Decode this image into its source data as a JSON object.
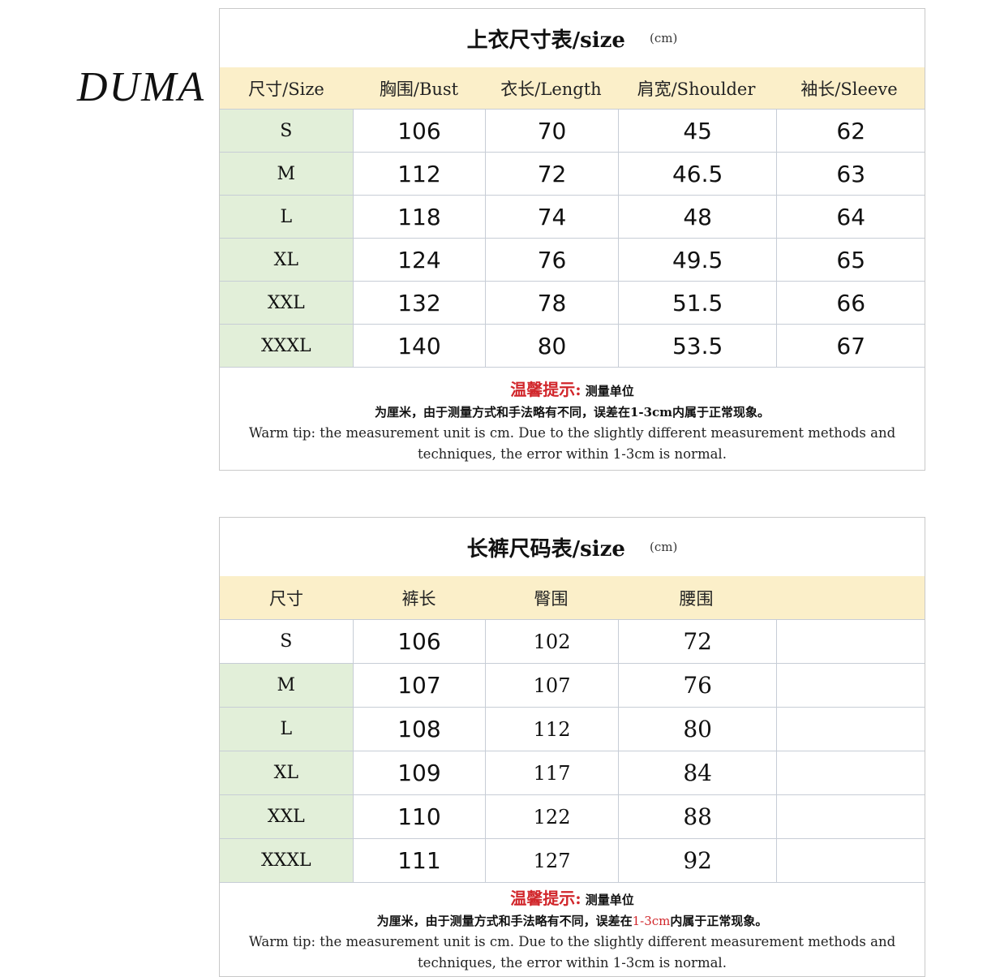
{
  "logo": "DUMA",
  "top": {
    "title": "上衣尺寸表/size",
    "unit": "(cm)",
    "headers": [
      "尺寸/Size",
      "胸围/Bust",
      "衣长/Length",
      "肩宽/Shoulder",
      "袖长/Sleeve"
    ],
    "rows": [
      [
        "S",
        "106",
        "70",
        "45",
        "62"
      ],
      [
        "M",
        "112",
        "72",
        "46.5",
        "63"
      ],
      [
        "L",
        "118",
        "74",
        "48",
        "64"
      ],
      [
        "XL",
        "124",
        "76",
        "49.5",
        "65"
      ],
      [
        "XXL",
        "132",
        "78",
        "51.5",
        "66"
      ],
      [
        "XXXL",
        "140",
        "80",
        "53.5",
        "67"
      ]
    ],
    "tip_label": "温馨提示:",
    "tip_cn1": "测量单位",
    "tip_cn2": "为厘米，由于测量方式和手法略有不同，误差在1-3cm内属于正常现象。",
    "tip_en": "Warm tip: the measurement unit is cm. Due to the slightly different measurement methods and techniques, the error within 1-3cm is normal."
  },
  "pants": {
    "title": "长裤尺码表/size",
    "unit": "(cm)",
    "headers": [
      "尺寸",
      "裤长",
      "臀围",
      "腰围",
      ""
    ],
    "rows": [
      [
        "S",
        "106",
        "102",
        "72",
        ""
      ],
      [
        "M",
        "107",
        "107",
        "76",
        ""
      ],
      [
        "L",
        "108",
        "112",
        "80",
        ""
      ],
      [
        "XL",
        "109",
        "117",
        "84",
        ""
      ],
      [
        "XXL",
        "110",
        "122",
        "88",
        ""
      ],
      [
        "XXXL",
        "111",
        "127",
        "92",
        ""
      ]
    ],
    "tip_label": "温馨提示:",
    "tip_cn1": "测量单位",
    "tip_cn2a": "为厘米，由于测量方式和手法略有不同，误差在",
    "tip_cn2b": "1-3cm",
    "tip_cn2c": "内属于正常现象。",
    "tip_en": "Warm tip: the measurement unit is cm. Due to the slightly different measurement methods and techniques, the error within 1-3cm is normal."
  },
  "colors": {
    "header_bg": "#fbefc9",
    "size_col_bg": "#e2efd9",
    "tip_red": "#d1262b"
  }
}
